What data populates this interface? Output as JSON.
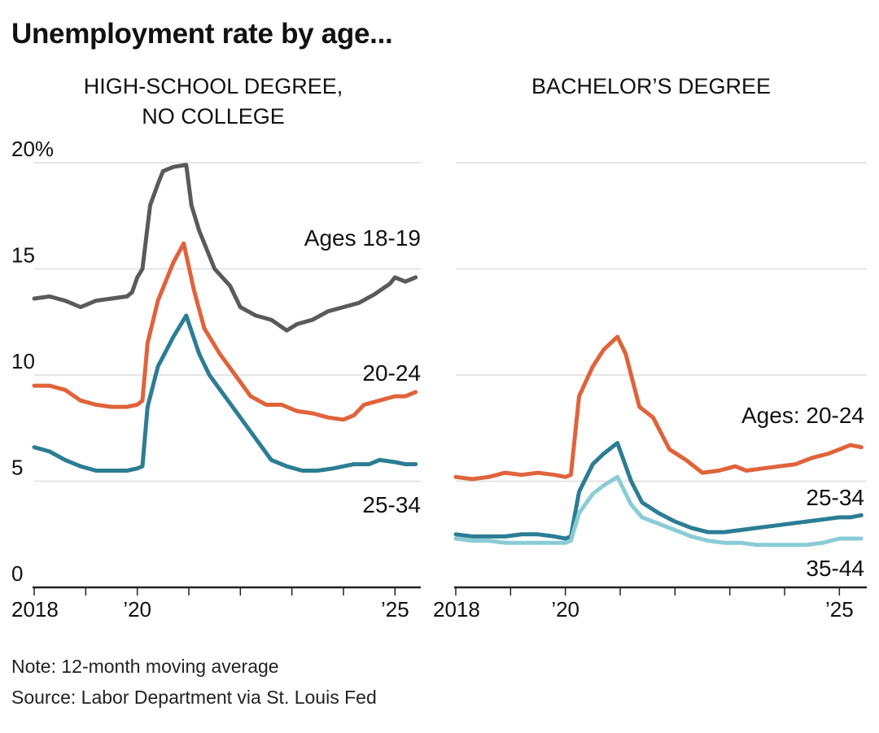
{
  "title": "Unemployment rate by age...",
  "note": "Note: 12-month moving average",
  "source": "Source: Labor Department via St. Louis Fed",
  "colors": {
    "dark": "#5a5a5a",
    "orange": "#e0633b",
    "teal": "#2b7d94",
    "lightTeal": "#89ccd6",
    "grid": "#dddddd",
    "axis": "#222222"
  },
  "chart_data": [
    {
      "type": "line",
      "title_lines": [
        "HIGH-SCHOOL DEGREE,",
        "NO COLLEGE"
      ],
      "xlim": [
        2018,
        2025.5
      ],
      "ylim": [
        0,
        20
      ],
      "yticks": [
        0,
        5,
        10,
        15,
        20
      ],
      "ytick_labels": [
        "0",
        "5",
        "10",
        "15",
        "20%"
      ],
      "xtick_labels": [
        {
          "x": 2018,
          "label": "2018"
        },
        {
          "x": 2020,
          "label": "’20"
        },
        {
          "x": 2025,
          "label": "’25"
        }
      ],
      "xticks_minor": [
        2018,
        2019,
        2020,
        2021,
        2022,
        2023,
        2024,
        2025
      ],
      "series": [
        {
          "name": "Ages 18-19",
          "color": "dark",
          "label": "Ages 18-19",
          "points": [
            [
              2018.0,
              13.6
            ],
            [
              2018.3,
              13.7
            ],
            [
              2018.6,
              13.5
            ],
            [
              2018.9,
              13.2
            ],
            [
              2019.2,
              13.5
            ],
            [
              2019.5,
              13.6
            ],
            [
              2019.8,
              13.7
            ],
            [
              2019.9,
              13.9
            ],
            [
              2020.0,
              14.6
            ],
            [
              2020.1,
              15.0
            ],
            [
              2020.25,
              18.0
            ],
            [
              2020.4,
              19.0
            ],
            [
              2020.5,
              19.6
            ],
            [
              2020.7,
              19.8
            ],
            [
              2020.95,
              19.9
            ],
            [
              2021.05,
              18.0
            ],
            [
              2021.2,
              16.8
            ],
            [
              2021.5,
              15.0
            ],
            [
              2021.8,
              14.2
            ],
            [
              2022.0,
              13.2
            ],
            [
              2022.3,
              12.8
            ],
            [
              2022.6,
              12.6
            ],
            [
              2022.9,
              12.1
            ],
            [
              2023.1,
              12.4
            ],
            [
              2023.4,
              12.6
            ],
            [
              2023.7,
              13.0
            ],
            [
              2024.0,
              13.2
            ],
            [
              2024.3,
              13.4
            ],
            [
              2024.6,
              13.8
            ],
            [
              2024.9,
              14.3
            ],
            [
              2025.0,
              14.6
            ],
            [
              2025.2,
              14.4
            ],
            [
              2025.4,
              14.6
            ]
          ]
        },
        {
          "name": "20-24",
          "color": "orange",
          "label": "20-24",
          "points": [
            [
              2018.0,
              9.5
            ],
            [
              2018.3,
              9.5
            ],
            [
              2018.6,
              9.3
            ],
            [
              2018.9,
              8.8
            ],
            [
              2019.2,
              8.6
            ],
            [
              2019.5,
              8.5
            ],
            [
              2019.8,
              8.5
            ],
            [
              2020.0,
              8.6
            ],
            [
              2020.1,
              8.8
            ],
            [
              2020.2,
              11.5
            ],
            [
              2020.4,
              13.5
            ],
            [
              2020.7,
              15.3
            ],
            [
              2020.9,
              16.2
            ],
            [
              2021.1,
              14.0
            ],
            [
              2021.3,
              12.2
            ],
            [
              2021.6,
              11.0
            ],
            [
              2021.9,
              10.0
            ],
            [
              2022.2,
              9.0
            ],
            [
              2022.5,
              8.6
            ],
            [
              2022.8,
              8.6
            ],
            [
              2023.1,
              8.3
            ],
            [
              2023.4,
              8.2
            ],
            [
              2023.7,
              8.0
            ],
            [
              2024.0,
              7.9
            ],
            [
              2024.2,
              8.1
            ],
            [
              2024.4,
              8.6
            ],
            [
              2024.7,
              8.8
            ],
            [
              2025.0,
              9.0
            ],
            [
              2025.2,
              9.0
            ],
            [
              2025.4,
              9.2
            ]
          ]
        },
        {
          "name": "25-34",
          "color": "teal",
          "label": "25-34",
          "points": [
            [
              2018.0,
              6.6
            ],
            [
              2018.3,
              6.4
            ],
            [
              2018.6,
              6.0
            ],
            [
              2018.9,
              5.7
            ],
            [
              2019.2,
              5.5
            ],
            [
              2019.5,
              5.5
            ],
            [
              2019.8,
              5.5
            ],
            [
              2020.0,
              5.6
            ],
            [
              2020.1,
              5.7
            ],
            [
              2020.2,
              8.5
            ],
            [
              2020.4,
              10.4
            ],
            [
              2020.7,
              11.8
            ],
            [
              2020.95,
              12.8
            ],
            [
              2021.2,
              11.0
            ],
            [
              2021.4,
              10.0
            ],
            [
              2021.7,
              9.0
            ],
            [
              2022.0,
              8.0
            ],
            [
              2022.3,
              7.0
            ],
            [
              2022.6,
              6.0
            ],
            [
              2022.9,
              5.7
            ],
            [
              2023.2,
              5.5
            ],
            [
              2023.5,
              5.5
            ],
            [
              2023.8,
              5.6
            ],
            [
              2024.2,
              5.8
            ],
            [
              2024.5,
              5.8
            ],
            [
              2024.7,
              6.0
            ],
            [
              2025.0,
              5.9
            ],
            [
              2025.2,
              5.8
            ],
            [
              2025.4,
              5.8
            ]
          ]
        }
      ]
    },
    {
      "type": "line",
      "title_lines": [
        "BACHELOR’S DEGREE"
      ],
      "xlim": [
        2018,
        2025.5
      ],
      "ylim": [
        0,
        20
      ],
      "yticks": [
        0,
        5,
        10,
        15,
        20
      ],
      "xtick_labels": [
        {
          "x": 2018,
          "label": "2018"
        },
        {
          "x": 2020,
          "label": "’20"
        },
        {
          "x": 2025,
          "label": "’25"
        }
      ],
      "xticks_minor": [
        2018,
        2019,
        2020,
        2021,
        2022,
        2023,
        2024,
        2025
      ],
      "series": [
        {
          "name": "Ages: 20-24",
          "color": "orange",
          "label": "Ages: 20-24",
          "points": [
            [
              2018.0,
              5.2
            ],
            [
              2018.3,
              5.1
            ],
            [
              2018.6,
              5.2
            ],
            [
              2018.9,
              5.4
            ],
            [
              2019.2,
              5.3
            ],
            [
              2019.5,
              5.4
            ],
            [
              2019.8,
              5.3
            ],
            [
              2020.0,
              5.2
            ],
            [
              2020.1,
              5.3
            ],
            [
              2020.25,
              9.0
            ],
            [
              2020.5,
              10.4
            ],
            [
              2020.7,
              11.2
            ],
            [
              2020.95,
              11.8
            ],
            [
              2021.1,
              11.0
            ],
            [
              2021.35,
              8.5
            ],
            [
              2021.6,
              8.0
            ],
            [
              2021.9,
              6.5
            ],
            [
              2022.2,
              6.0
            ],
            [
              2022.5,
              5.4
            ],
            [
              2022.8,
              5.5
            ],
            [
              2023.1,
              5.7
            ],
            [
              2023.3,
              5.5
            ],
            [
              2023.6,
              5.6
            ],
            [
              2023.9,
              5.7
            ],
            [
              2024.2,
              5.8
            ],
            [
              2024.5,
              6.1
            ],
            [
              2024.8,
              6.3
            ],
            [
              2025.0,
              6.5
            ],
            [
              2025.2,
              6.7
            ],
            [
              2025.4,
              6.6
            ]
          ]
        },
        {
          "name": "25-34",
          "color": "teal",
          "label": "25-34",
          "points": [
            [
              2018.0,
              2.5
            ],
            [
              2018.3,
              2.4
            ],
            [
              2018.6,
              2.4
            ],
            [
              2018.9,
              2.4
            ],
            [
              2019.2,
              2.5
            ],
            [
              2019.5,
              2.5
            ],
            [
              2019.8,
              2.4
            ],
            [
              2020.0,
              2.3
            ],
            [
              2020.1,
              2.4
            ],
            [
              2020.25,
              4.5
            ],
            [
              2020.5,
              5.8
            ],
            [
              2020.7,
              6.3
            ],
            [
              2020.95,
              6.8
            ],
            [
              2021.2,
              5.0
            ],
            [
              2021.4,
              4.0
            ],
            [
              2021.7,
              3.5
            ],
            [
              2022.0,
              3.1
            ],
            [
              2022.3,
              2.8
            ],
            [
              2022.6,
              2.6
            ],
            [
              2022.9,
              2.6
            ],
            [
              2023.2,
              2.7
            ],
            [
              2023.5,
              2.8
            ],
            [
              2023.8,
              2.9
            ],
            [
              2024.1,
              3.0
            ],
            [
              2024.4,
              3.1
            ],
            [
              2024.7,
              3.2
            ],
            [
              2025.0,
              3.3
            ],
            [
              2025.2,
              3.3
            ],
            [
              2025.4,
              3.4
            ]
          ]
        },
        {
          "name": "35-44",
          "color": "lightTeal",
          "label": "35-44",
          "points": [
            [
              2018.0,
              2.3
            ],
            [
              2018.3,
              2.2
            ],
            [
              2018.6,
              2.2
            ],
            [
              2018.9,
              2.1
            ],
            [
              2019.2,
              2.1
            ],
            [
              2019.5,
              2.1
            ],
            [
              2019.8,
              2.1
            ],
            [
              2020.0,
              2.1
            ],
            [
              2020.1,
              2.2
            ],
            [
              2020.25,
              3.5
            ],
            [
              2020.5,
              4.4
            ],
            [
              2020.7,
              4.8
            ],
            [
              2020.95,
              5.2
            ],
            [
              2021.2,
              3.9
            ],
            [
              2021.4,
              3.3
            ],
            [
              2021.7,
              3.0
            ],
            [
              2022.0,
              2.7
            ],
            [
              2022.3,
              2.4
            ],
            [
              2022.6,
              2.2
            ],
            [
              2022.9,
              2.1
            ],
            [
              2023.2,
              2.1
            ],
            [
              2023.5,
              2.0
            ],
            [
              2023.8,
              2.0
            ],
            [
              2024.1,
              2.0
            ],
            [
              2024.4,
              2.0
            ],
            [
              2024.7,
              2.1
            ],
            [
              2025.0,
              2.3
            ],
            [
              2025.2,
              2.3
            ],
            [
              2025.4,
              2.3
            ]
          ]
        }
      ]
    }
  ]
}
